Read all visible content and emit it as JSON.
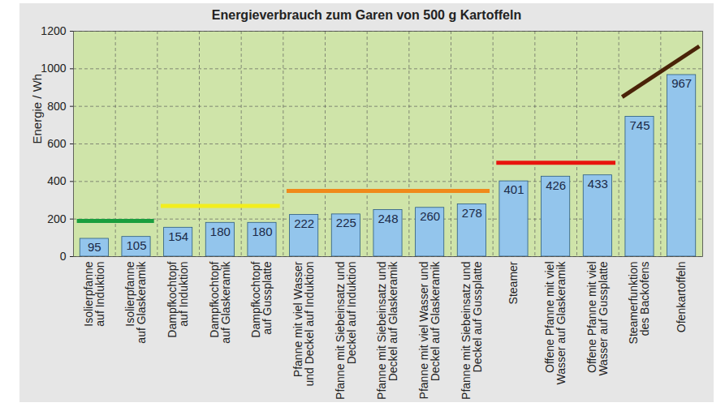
{
  "chart_data": {
    "type": "bar",
    "title": "Energieverbrauch zum Garen von 500 g Kartoffeln",
    "y_label": "Energie / Wh",
    "categories": [
      "Isolierpfanne\nauf Induktion",
      "Isolierpfanne\nauf Glaskeramik",
      "Dampfkochtopf\nauf Induktion",
      "Dampfkochtopf\nauf Glaskeramik",
      "Dampfkochtopf\nauf Gussplatte",
      "Pfanne mit viel Wasser\nund Deckel auf Induktion",
      "Pfanne mit Siebeinsatz und\nDeckel auf Induktion",
      "Pfanne mit Siebeinsatz und\nDeckel auf Glaskeramik",
      "Pfanne mit viel Wasser und\nDeckel auf Glaskeramik",
      "Pfanne mit Siebeinsatz und\nDeckel auf Gussplatte",
      "Steamer",
      "Offene Pfanne mit viel\nWasser auf Glaskeramik",
      "Offene Pfanne mit viel\nWasser auf Gussplatte",
      "Steamerfunktion\ndes Backofens",
      "Ofenkartoffeln"
    ],
    "values": [
      95,
      105,
      154,
      180,
      180,
      222,
      225,
      248,
      260,
      278,
      401,
      426,
      433,
      745,
      967
    ],
    "color": "#93c5ec",
    "ylim": [
      0,
      1200
    ],
    "yticks": [
      0,
      200,
      400,
      600,
      800,
      1000,
      1200
    ],
    "grid": true,
    "data_labels": true,
    "annotations": [
      {
        "from": "Isolierpfanne\nauf Induktion",
        "to": "Isolierpfanne\nauf Glaskeramik",
        "y1": 190,
        "y2": 190,
        "color": "#1a9e3e"
      },
      {
        "from": "Dampfkochtopf\nauf Induktion",
        "to": "Dampfkochtopf\nauf Gussplatte",
        "y1": 270,
        "y2": 270,
        "color": "#f2ee1e"
      },
      {
        "from": "Pfanne mit viel Wasser\nund Deckel auf Induktion",
        "to": "Pfanne mit Siebeinsatz und\nDeckel auf Gussplatte",
        "y1": 350,
        "y2": 350,
        "color": "#f08a1a"
      },
      {
        "from": "Steamer",
        "to": "Offene Pfanne mit viel\nWasser auf Gussplatte",
        "y1": 500,
        "y2": 500,
        "color": "#e8140e"
      },
      {
        "from": "Steamerfunktion\ndes Backofens",
        "to": "Ofenkartoffeln",
        "y1": 850,
        "y2": 1120,
        "color": "#4a2308"
      }
    ]
  }
}
